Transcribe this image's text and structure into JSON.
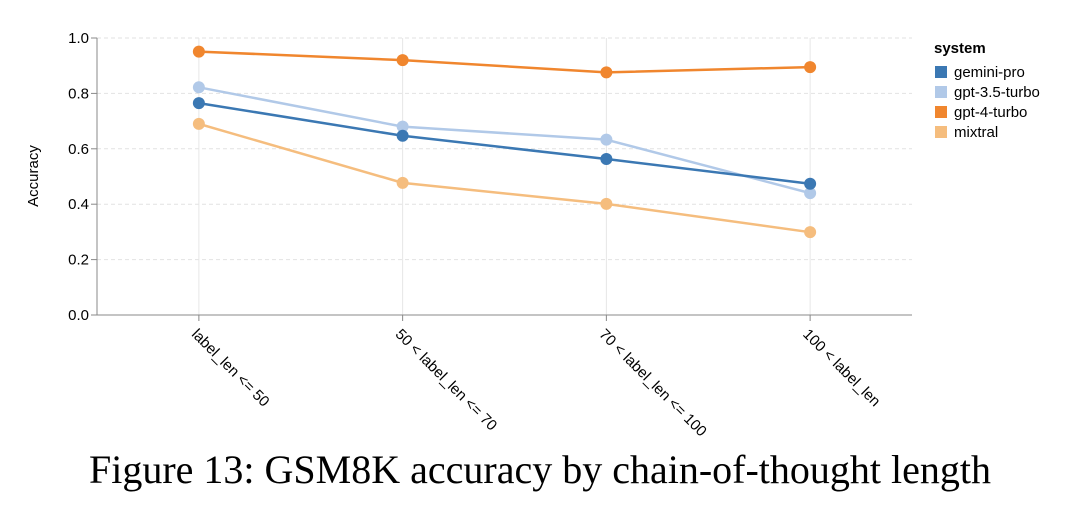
{
  "caption": "Figure 13: GSM8K accuracy by chain-of-thought length",
  "chart_data": {
    "type": "line",
    "title": "",
    "xlabel": "",
    "ylabel": "Accuracy",
    "ylim": [
      0,
      1
    ],
    "yticks": [
      "0.0",
      "0.2",
      "0.4",
      "0.6",
      "0.8",
      "1.0"
    ],
    "grid": true,
    "legend_position": "right",
    "legend_title": "system",
    "categories": [
      "label_len <= 50",
      "50 < label_len <= 70",
      "70 < label_len <= 100",
      "100 < label_len"
    ],
    "series": [
      {
        "name": "gemini-pro",
        "color": "#3b78b3",
        "values": [
          0.765,
          0.647,
          0.563,
          0.474
        ]
      },
      {
        "name": "gpt-3.5-turbo",
        "color": "#b1c9e8",
        "values": [
          0.822,
          0.68,
          0.633,
          0.44
        ]
      },
      {
        "name": "gpt-4-turbo",
        "color": "#f0862e",
        "values": [
          0.951,
          0.92,
          0.876,
          0.895
        ]
      },
      {
        "name": "mixtral",
        "color": "#f5bd7e",
        "values": [
          0.69,
          0.477,
          0.401,
          0.299
        ]
      }
    ],
    "draw_order": [
      3,
      1,
      0,
      2
    ]
  }
}
